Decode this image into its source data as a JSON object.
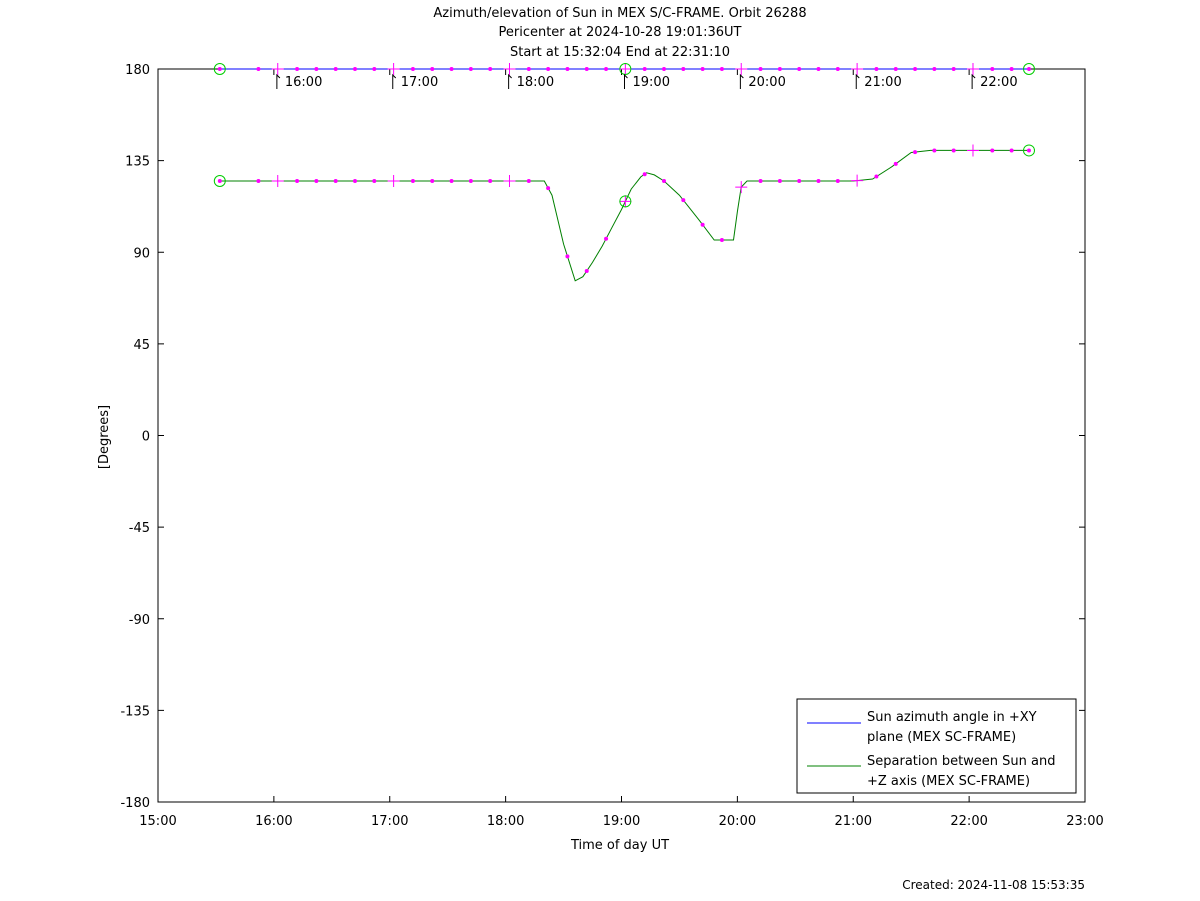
{
  "chart_data": {
    "type": "line",
    "title_lines": [
      "Azimuth/elevation of Sun in MEX S/C-FRAME.  Orbit 26288",
      "Pericenter at 2024-10-28 19:01:36UT",
      "Start at 15:32:04 End at 22:31:10"
    ],
    "xlabel": "Time of day UT",
    "ylabel": "[Degrees]",
    "footer": "Created: 2024-11-08 15:53:35",
    "xlim": [
      "15:00",
      "23:00"
    ],
    "ylim": [
      -180,
      180
    ],
    "x_ticks": [
      "15:00",
      "16:00",
      "17:00",
      "18:00",
      "19:00",
      "20:00",
      "21:00",
      "22:00",
      "23:00"
    ],
    "y_ticks": [
      180,
      135,
      90,
      45,
      0,
      -45,
      -90,
      -135,
      -180
    ],
    "hour_markers": [
      "16:00",
      "17:00",
      "18:00",
      "19:00",
      "20:00",
      "21:00",
      "22:00"
    ],
    "series": [
      {
        "name": "Sun azimuth angle in +XY plane (MEX SC-FRAME)",
        "legend_lines": [
          "Sun azimuth angle in +XY",
          "plane (MEX SC-FRAME)"
        ],
        "color": "#0000ff",
        "x": [
          "15:32",
          "22:31"
        ],
        "y": [
          180,
          180
        ]
      },
      {
        "name": "Separation between Sun and +Z axis (MEX SC-FRAME)",
        "legend_lines": [
          "Separation between Sun and",
          "+Z axis (MEX SC-FRAME)"
        ],
        "color": "#008000",
        "x": [
          "15:32",
          "18:20",
          "18:24",
          "18:30",
          "18:36",
          "18:40",
          "18:45",
          "18:50",
          "18:55",
          "19:00",
          "19:05",
          "19:10",
          "19:13",
          "19:17",
          "19:22",
          "19:30",
          "19:40",
          "19:48",
          "19:53",
          "19:58",
          "20:00",
          "20:02",
          "20:05",
          "21:00",
          "21:10",
          "21:20",
          "21:30",
          "21:40",
          "22:31"
        ],
        "y": [
          125,
          125,
          118,
          94,
          76,
          78,
          85,
          93,
          102,
          111,
          121,
          127,
          129,
          128,
          125,
          118,
          106,
          96,
          96,
          96,
          110,
          122,
          125,
          125,
          126,
          132,
          139,
          140,
          140
        ]
      }
    ],
    "markers": {
      "dot_color": "#ff00ff",
      "circle_color": "#00cc00",
      "dot_times": [
        "15:32",
        "15:52",
        "16:12",
        "16:22",
        "16:32",
        "16:42",
        "16:52",
        "17:12",
        "17:22",
        "17:32",
        "17:42",
        "17:52",
        "18:12",
        "18:22",
        "18:32",
        "18:42",
        "18:52",
        "19:12",
        "19:22",
        "19:32",
        "19:42",
        "19:52",
        "20:12",
        "20:22",
        "20:32",
        "20:42",
        "20:52",
        "21:12",
        "21:22",
        "21:32",
        "21:42",
        "21:52",
        "22:12",
        "22:22",
        "22:31"
      ],
      "plus_times": [
        "16:02",
        "17:02",
        "18:02",
        "19:02",
        "20:02",
        "21:02",
        "22:02"
      ],
      "circle_times": [
        "15:32",
        "19:02",
        "22:31"
      ]
    }
  }
}
